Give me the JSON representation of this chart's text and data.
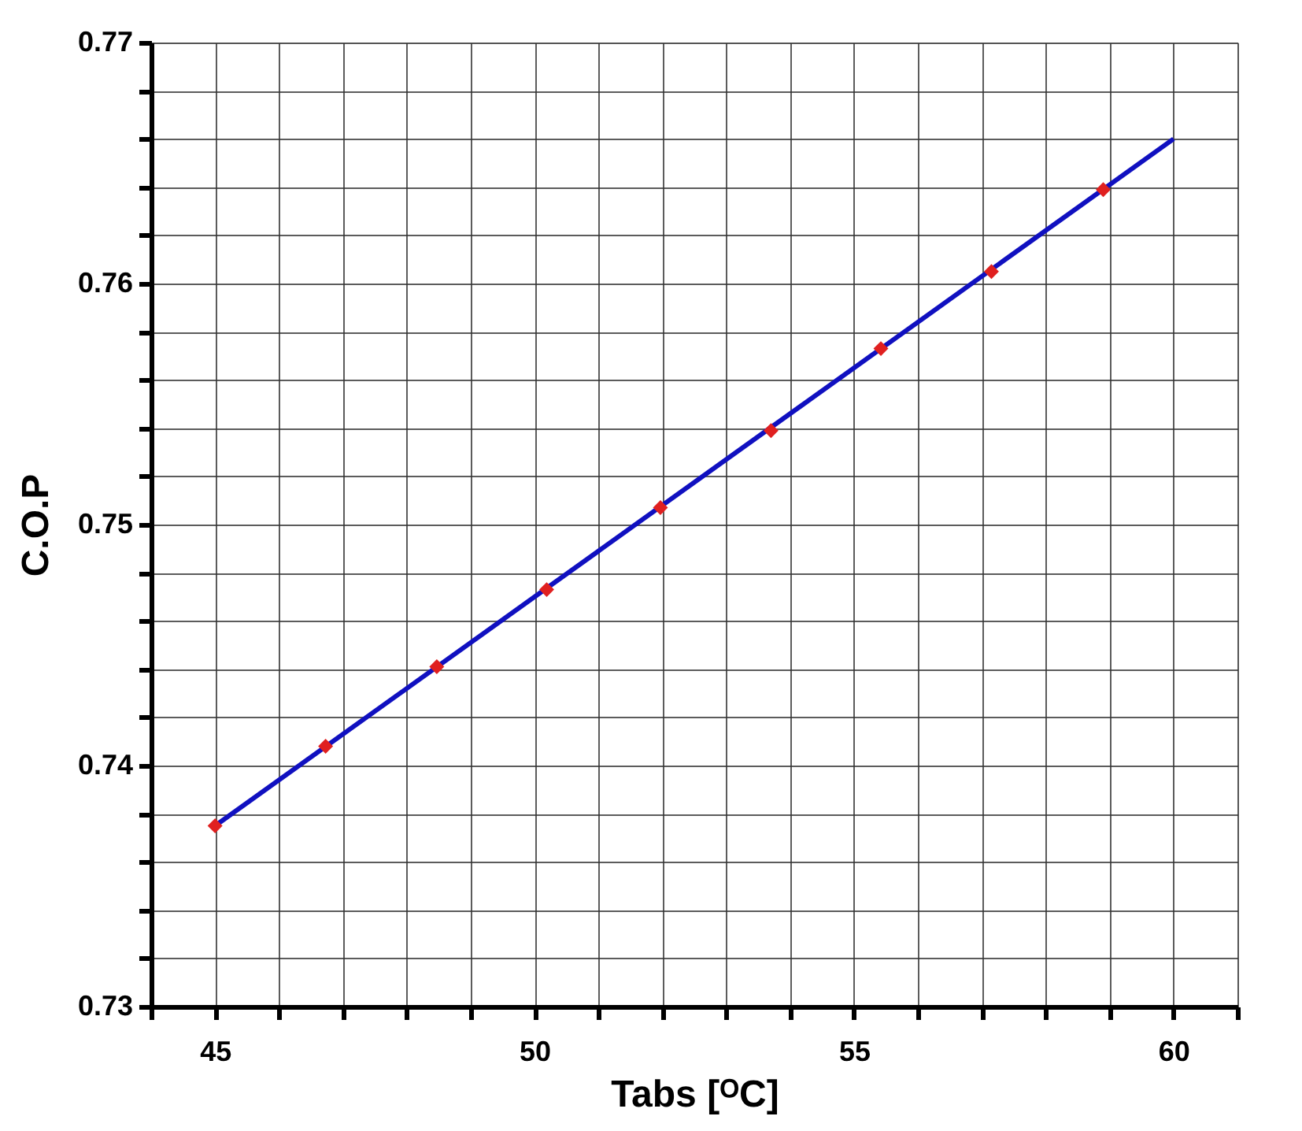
{
  "chart_data": {
    "type": "scatter",
    "xlabel": "Tabs [ᴼC]",
    "ylabel": "C.O.P",
    "xlim": [
      44,
      61
    ],
    "ylim": [
      0.73,
      0.77
    ],
    "xticks": [
      {
        "value": 44,
        "label": null
      },
      45,
      {
        "value": 46,
        "label": null
      },
      {
        "value": 47,
        "label": null
      },
      {
        "value": 48,
        "label": null
      },
      {
        "value": 49,
        "label": null
      },
      50,
      {
        "value": 51,
        "label": null
      },
      {
        "value": 52,
        "label": null
      },
      {
        "value": 53,
        "label": null
      },
      {
        "value": 54,
        "label": null
      },
      55,
      {
        "value": 56,
        "label": null
      },
      {
        "value": 57,
        "label": null
      },
      {
        "value": 58,
        "label": null
      },
      {
        "value": 59,
        "label": null
      },
      60,
      {
        "value": 61,
        "label": null
      }
    ],
    "yticks": [
      0.73,
      {
        "value": 0.732,
        "label": null
      },
      {
        "value": 0.734,
        "label": null
      },
      {
        "value": 0.736,
        "label": null
      },
      {
        "value": 0.738,
        "label": null
      },
      0.74,
      {
        "value": 0.742,
        "label": null
      },
      {
        "value": 0.744,
        "label": null
      },
      {
        "value": 0.746,
        "label": null
      },
      {
        "value": 0.748,
        "label": null
      },
      0.75,
      {
        "value": 0.752,
        "label": null
      },
      {
        "value": 0.754,
        "label": null
      },
      {
        "value": 0.756,
        "label": null
      },
      {
        "value": 0.758,
        "label": null
      },
      0.76,
      {
        "value": 0.762,
        "label": null
      },
      {
        "value": 0.764,
        "label": null
      },
      {
        "value": 0.766,
        "label": null
      },
      {
        "value": 0.768,
        "label": null
      },
      0.77
    ],
    "grid": true,
    "series": [
      {
        "type": "line",
        "color": "#1010c0",
        "x": [
          45,
          60
        ],
        "values": [
          0.7375,
          0.766
        ],
        "marker": "none",
        "line_style": "solid"
      },
      {
        "color": "#e02020",
        "x": [
          45,
          46.73,
          48.47,
          50.19,
          51.97,
          53.7,
          55.42,
          57.15,
          58.9
        ],
        "values": [
          0.7375,
          0.7408,
          0.7441,
          0.7473,
          0.7507,
          0.7539,
          0.7573,
          0.7605,
          0.7639
        ],
        "marker": "diamond"
      }
    ]
  }
}
